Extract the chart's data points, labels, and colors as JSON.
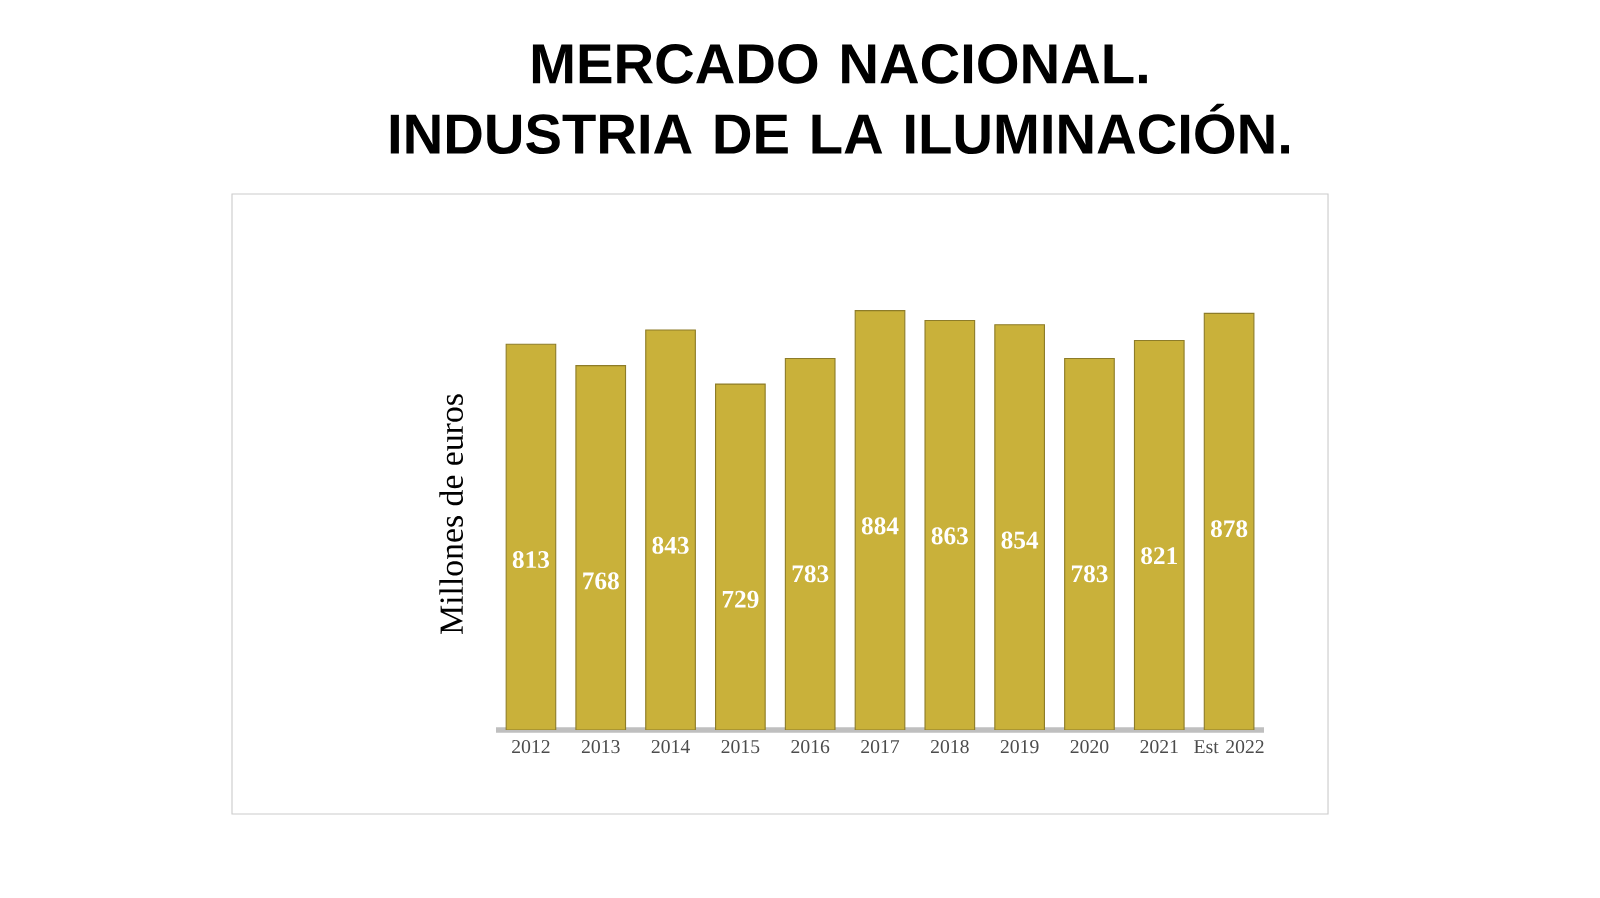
{
  "chart_data": {
    "type": "bar",
    "title": "MERCADO NACIONAL. INDUSTRIA DE LA ILUMINACIÓN.",
    "ylabel": "Millones de euros",
    "categories": [
      "2012",
      "2013",
      "2014",
      "2015",
      "2016",
      "2017",
      "2018",
      "2019",
      "2020",
      "2021",
      "Est 2022"
    ],
    "values": [
      813,
      768,
      843,
      729,
      783,
      884,
      863,
      854,
      783,
      821,
      878
    ],
    "color": "#c9b13a",
    "data_labels": true
  }
}
